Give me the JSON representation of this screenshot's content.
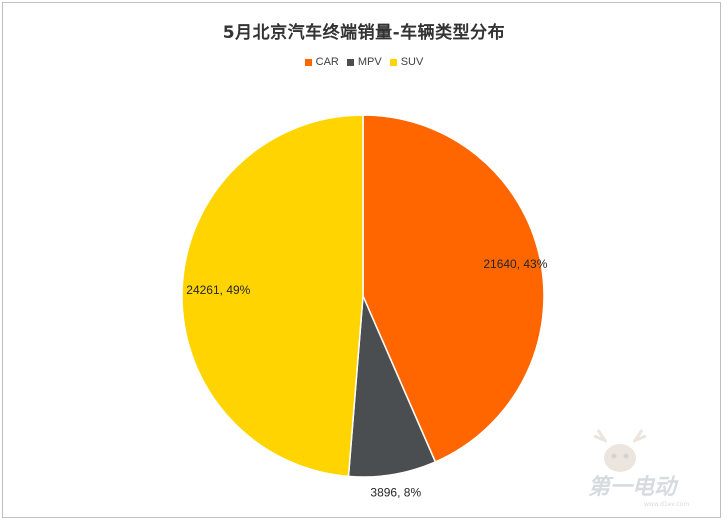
{
  "chart_data": {
    "type": "pie",
    "title": "5月北京汽车终端销量-车辆类型分布",
    "categories": [
      "CAR",
      "MPV",
      "SUV"
    ],
    "values": [
      21640,
      3896,
      24261
    ],
    "percent_labels": [
      "43%",
      "8%",
      "49%"
    ],
    "data_labels": [
      "21640, 43%",
      "3896, 8%",
      "24261, 49%"
    ],
    "colors": [
      "#FF6600",
      "#4A4E50",
      "#FFD400"
    ],
    "legend_position": "top"
  },
  "watermark": {
    "brand": "第一电动",
    "site": "www.d1ev.com"
  }
}
